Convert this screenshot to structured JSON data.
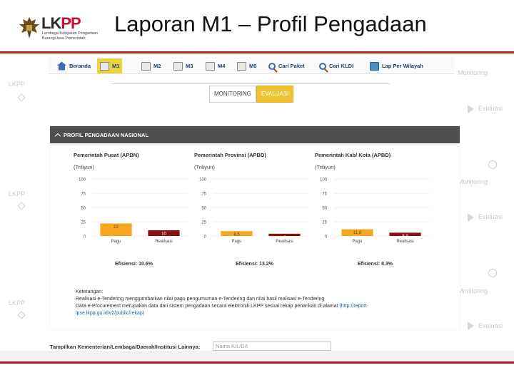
{
  "header": {
    "logo_brand_a": "LK",
    "logo_brand_b": "PP",
    "logo_tagline": "Lembaga Kebijakan Pengadaan Barang/Jasa Pemerintah",
    "title": "Laporan M1 – Profil Pengadaan"
  },
  "nav": {
    "items": [
      {
        "label": "Beranda",
        "icon": "home-icon"
      },
      {
        "label": "M1",
        "icon": "document-icon"
      },
      {
        "label": "M2",
        "icon": "document-icon"
      },
      {
        "label": "M3",
        "icon": "document-icon"
      },
      {
        "label": "M4",
        "icon": "document-icon"
      },
      {
        "label": "M5",
        "icon": "document-icon"
      },
      {
        "label": "Cari Paket",
        "icon": "search-icon"
      },
      {
        "label": "Cari KLDI",
        "icon": "search-icon"
      },
      {
        "label": "Lap Per Wilayah",
        "icon": "map-icon"
      }
    ],
    "active": "M1"
  },
  "tabs": {
    "monitoring": "MONITORING",
    "evaluasi": "EVALUASI"
  },
  "panel": {
    "title": "PROFIL PENGADAAN NASIONAL"
  },
  "colors": {
    "pagu": "#f5a623",
    "realisasi": "#8b0f0f",
    "accent_tab": "#f1c232",
    "rule": "#b01d1d"
  },
  "chart_data": [
    {
      "type": "bar",
      "title": "Pemerintah Pusat (APBN)",
      "unit": "(Triliyun)",
      "categories": [
        "Pagu",
        "Realisasi"
      ],
      "values": [
        22,
        10
      ],
      "ylim": [
        0,
        100
      ],
      "yticks": [
        0,
        25,
        50,
        75,
        100
      ],
      "efisiensi": "Efisiensi: 10.6%"
    },
    {
      "type": "bar",
      "title": "Pemerintah Provinsi (APBD)",
      "unit": "(Triliyun)",
      "categories": [
        "Pagu",
        "Realisasi"
      ],
      "values": [
        8.5,
        4
      ],
      "value_labels": [
        "8,5",
        "4"
      ],
      "ylim": [
        0,
        100
      ],
      "yticks": [
        0,
        25,
        50,
        75,
        100
      ],
      "efisiensi": "Efisiensi: 13.2%"
    },
    {
      "type": "bar",
      "title": "Pemerintah Kab/ Kota (APBD)",
      "unit": "(Triliyun)",
      "categories": [
        "Pagu",
        "Realisasi"
      ],
      "values": [
        11.8,
        5.8
      ],
      "value_labels": [
        "11,8",
        "5,8"
      ],
      "ylim": [
        0,
        100
      ],
      "yticks": [
        0,
        25,
        50,
        75,
        100
      ],
      "efisiensi": "Efisiensi: 8.3%"
    }
  ],
  "keterangan": {
    "heading": "Keterangan:",
    "line1": "Realisasi e-Tendering menggambarkan nilai pagu pengumuman e-Tendering dan nilai hasil realisasi e-Tendering",
    "line2": "Data e-Procurement merupakan data dari sistem pengadaan secara elektronik LKPP sesuai rekap penarikan di alamat",
    "link": "(http://report-lpse.lkpp.go.id/v2/public/rekap)"
  },
  "filter": {
    "label": "Tampilkan Kementerian/Lembaga/Daerah/Institusi Lainnya:",
    "placeholder": "Nama K/L/D/I"
  },
  "watermarks": {
    "monitoring": "Monitoring",
    "evaluasi": "Evaluasi",
    "lkpp": "LKPP"
  }
}
